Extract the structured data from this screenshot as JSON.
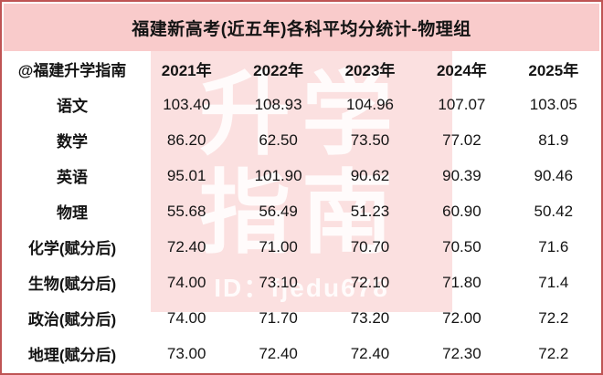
{
  "title": "福建新高考(近五年)各科平均分统计-物理组",
  "chart_data": {
    "type": "table",
    "title": "福建新高考(近五年)各科平均分统计-物理组",
    "corner_label": "@福建升学指南",
    "categories": [
      "2021年",
      "2022年",
      "2023年",
      "2024年",
      "2025年"
    ],
    "rows": [
      {
        "label": "语文",
        "values": [
          "103.40",
          "108.93",
          "104.96",
          "107.07",
          "103.05"
        ]
      },
      {
        "label": "数学",
        "values": [
          "86.20",
          "62.50",
          "73.50",
          "77.02",
          "81.9"
        ]
      },
      {
        "label": "英语",
        "values": [
          "95.01",
          "101.90",
          "90.62",
          "90.39",
          "90.46"
        ]
      },
      {
        "label": "物理",
        "values": [
          "55.68",
          "56.49",
          "51.23",
          "60.90",
          "50.42"
        ]
      },
      {
        "label": "化学(赋分后)",
        "values": [
          "72.40",
          "71.00",
          "70.70",
          "70.50",
          "71.6"
        ]
      },
      {
        "label": "生物(赋分后)",
        "values": [
          "74.00",
          "73.10",
          "72.10",
          "71.80",
          "71.4"
        ]
      },
      {
        "label": "政治(赋分后)",
        "values": [
          "74.00",
          "71.70",
          "73.20",
          "72.00",
          "72.2"
        ]
      },
      {
        "label": "地理(赋分后)",
        "values": [
          "73.00",
          "72.40",
          "72.40",
          "72.30",
          "72.2"
        ]
      }
    ],
    "layout": {
      "grid": false,
      "legend": "none"
    }
  },
  "watermark": {
    "line1": "升学",
    "line2": "指南",
    "id_text": "ID：fjedu678"
  },
  "colors": {
    "border": "#bf5454",
    "title_bar": "#f9cbcb",
    "watermark_band": "#fbe0e0",
    "text": "#141414"
  }
}
